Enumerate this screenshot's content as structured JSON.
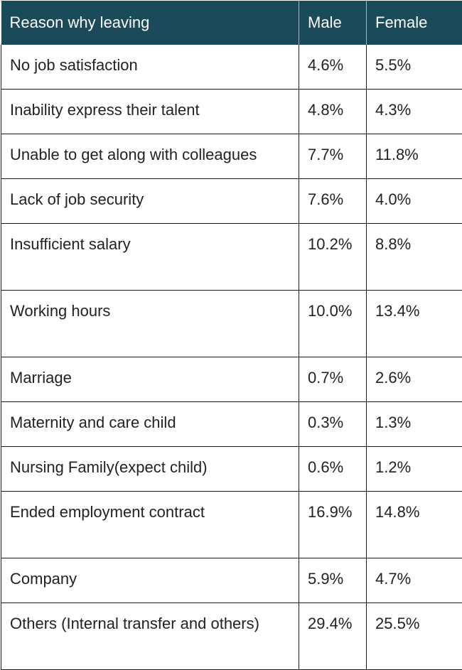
{
  "table": {
    "headers": [
      "Reason why leaving",
      "Male",
      "Female"
    ],
    "rows": [
      {
        "reason": "No job satisfaction",
        "male": "4.6%",
        "female": "5.5%"
      },
      {
        "reason": "Inability express their talent",
        "male": "4.8%",
        "female": "4.3%"
      },
      {
        "reason": "Unable to get along with colleagues",
        "male": "7.7%",
        "female": "11.8%"
      },
      {
        "reason": "Lack of job security",
        "male": "7.6%",
        "female": "4.0%"
      },
      {
        "reason": "Insufficient salary",
        "male": "10.2%",
        "female": "8.8%"
      },
      {
        "reason": "Working hours",
        "male": "10.0%",
        "female": "13.4%"
      },
      {
        "reason": "Marriage",
        "male": "0.7%",
        "female": "2.6%"
      },
      {
        "reason": "Maternity and care child",
        "male": "0.3%",
        "female": "1.3%"
      },
      {
        "reason": "Nursing Family(expect child)",
        "male": "0.6%",
        "female": "1.2%"
      },
      {
        "reason": "Ended employment contract",
        "male": "16.9%",
        "female": "14.8%"
      },
      {
        "reason": "Company",
        "male": "5.9%",
        "female": "4.7%"
      },
      {
        "reason": "Others (Internal transfer and others)",
        "male": "29.4%",
        "female": "25.5%"
      }
    ]
  },
  "colors": {
    "header_background": "#1b4a5a",
    "header_text": "#ffffff",
    "body_text": "#222222",
    "grid": "#1a1a1a"
  }
}
